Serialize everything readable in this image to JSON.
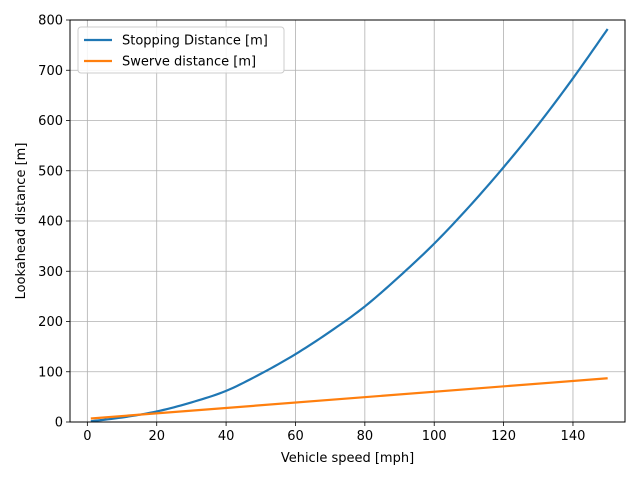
{
  "chart_data": {
    "type": "line",
    "title": "",
    "xlabel": "Vehicle speed [mph]",
    "ylabel": "Lookahead distance [m]",
    "xlim": [
      -5,
      155
    ],
    "ylim": [
      0,
      800
    ],
    "xticks": [
      0,
      20,
      40,
      60,
      80,
      100,
      120,
      140
    ],
    "yticks": [
      0,
      100,
      200,
      300,
      400,
      500,
      600,
      700,
      800
    ],
    "grid": true,
    "legend_position": "top-left",
    "series": [
      {
        "name": "Stopping Distance [m]",
        "color": "#1f77b4",
        "x": [
          1,
          10,
          20,
          30,
          40,
          50,
          60,
          70,
          80,
          90,
          100,
          110,
          120,
          130,
          140,
          150
        ],
        "y": [
          1.5,
          9,
          21,
          39,
          62,
          96,
          135,
          180,
          230,
          290,
          355,
          428,
          507,
          592,
          684,
          782
        ]
      },
      {
        "name": "Swerve distance [m]",
        "color": "#ff7f0e",
        "x": [
          1,
          150
        ],
        "y": [
          7,
          87
        ]
      }
    ]
  }
}
